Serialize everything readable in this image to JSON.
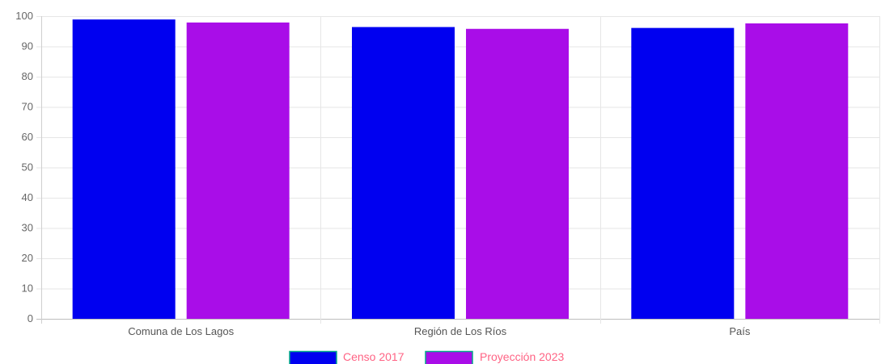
{
  "chart_data": {
    "type": "bar",
    "categories": [
      "Comuna de Los Lagos",
      "Región de Los Ríos",
      "País"
    ],
    "series": [
      {
        "name": "Censo 2017",
        "values": [
          98.9,
          96.4,
          96.1
        ],
        "color": "#0000f0"
      },
      {
        "name": "Proyección 2023",
        "values": [
          97.9,
          95.8,
          97.6
        ],
        "color": "#a90de8"
      }
    ],
    "ylim": [
      0,
      100
    ],
    "yticks": [
      0,
      10,
      20,
      30,
      40,
      50,
      60,
      70,
      80,
      90,
      100
    ],
    "grid": true,
    "legend_position": "bottom",
    "legend_text_color": "#ff6384",
    "legend_border_color": "#00aa88"
  }
}
